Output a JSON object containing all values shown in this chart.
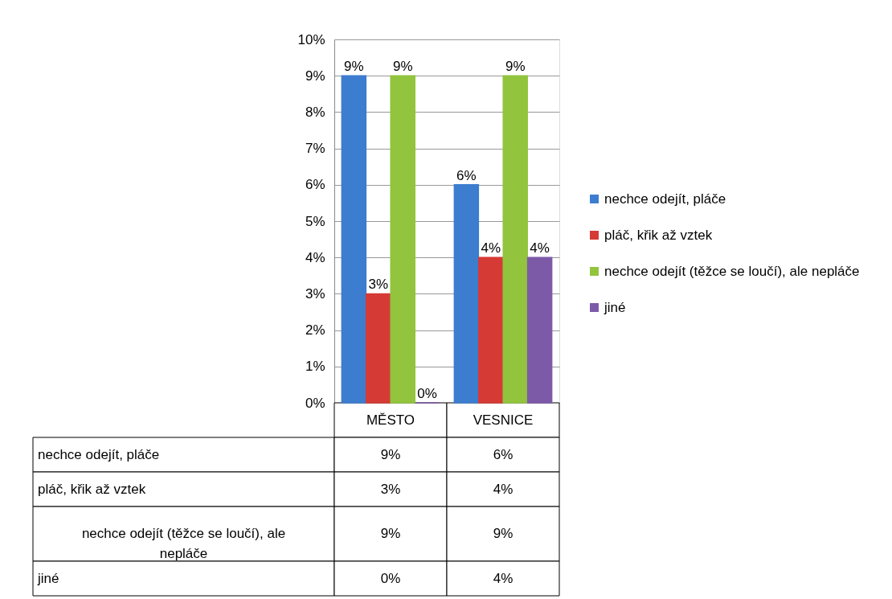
{
  "chart_data": {
    "type": "bar",
    "categories": [
      "MĚSTO",
      "VESNICE"
    ],
    "series": [
      {
        "name": "nechce odejít, pláče",
        "color": "#3c7dd0",
        "values": [
          9,
          6
        ],
        "value_labels": [
          "9%",
          "6%"
        ]
      },
      {
        "name": "pláč, křik až vztek",
        "color": "#d63a35",
        "values": [
          3,
          4
        ],
        "value_labels": [
          "3%",
          "4%"
        ]
      },
      {
        "name": "nechce odejít (těžce se loučí), ale nepláče",
        "color": "#92c43e",
        "values": [
          9,
          9
        ],
        "value_labels": [
          "9%",
          "9%"
        ]
      },
      {
        "name": "jiné",
        "color": "#7d5aa8",
        "values": [
          0,
          4
        ],
        "value_labels": [
          "0%",
          "4%"
        ]
      }
    ],
    "ylim": [
      0,
      10
    ],
    "yticks": [
      {
        "value": 0,
        "label": "0%"
      },
      {
        "value": 1,
        "label": "1%"
      },
      {
        "value": 2,
        "label": "2%"
      },
      {
        "value": 3,
        "label": "3%"
      },
      {
        "value": 4,
        "label": "4%"
      },
      {
        "value": 5,
        "label": "5%"
      },
      {
        "value": 6,
        "label": "6%"
      },
      {
        "value": 7,
        "label": "7%"
      },
      {
        "value": 8,
        "label": "8%"
      },
      {
        "value": 9,
        "label": "9%"
      },
      {
        "value": 10,
        "label": "10%"
      }
    ],
    "grid": "y",
    "legend": "right"
  }
}
